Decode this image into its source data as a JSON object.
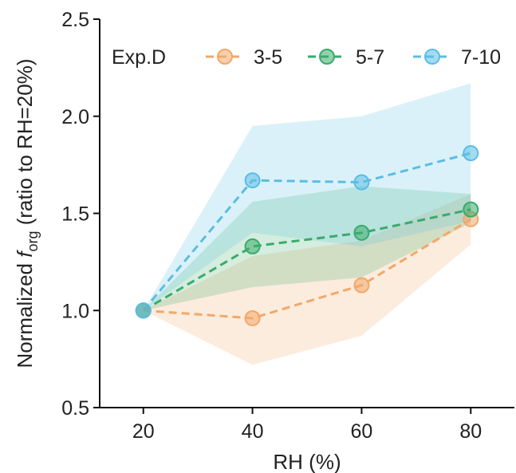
{
  "chart_data": {
    "type": "line",
    "x": [
      20,
      40,
      60,
      80
    ],
    "xlabel": "RH (%)",
    "ylabel_prefix": "Normalized ",
    "ylabel_f": "f",
    "ylabel_sub": "org",
    "ylabel_suffix": " (ratio to RH=20%)",
    "xlim": [
      12,
      88
    ],
    "ylim": [
      0.5,
      2.5
    ],
    "xticks": [
      20,
      40,
      60,
      80
    ],
    "yticks": [
      0.5,
      1.0,
      1.5,
      2.0,
      2.5
    ],
    "ytick_labels": [
      "0.5",
      "1.0",
      "1.5",
      "2.0",
      "2.5"
    ],
    "legend_title": "Exp.D",
    "legend_position": "top",
    "grid": false,
    "series": [
      {
        "name": "3-5",
        "color": "#f2a86a",
        "values": [
          1.0,
          0.96,
          1.13,
          1.47
        ],
        "band_low": [
          1.0,
          0.72,
          0.87,
          1.34
        ],
        "band_high": [
          1.0,
          1.28,
          1.36,
          1.6
        ]
      },
      {
        "name": "5-7",
        "color": "#3aab6b",
        "values": [
          1.0,
          1.33,
          1.4,
          1.52
        ],
        "band_low": [
          1.0,
          1.12,
          1.17,
          1.45
        ],
        "band_high": [
          1.0,
          1.56,
          1.64,
          1.6
        ]
      },
      {
        "name": "7-10",
        "color": "#5bbde4",
        "values": [
          1.0,
          1.67,
          1.66,
          1.81
        ],
        "band_low": [
          1.0,
          1.4,
          1.33,
          1.46
        ],
        "band_high": [
          1.0,
          1.95,
          2.0,
          2.17
        ]
      }
    ]
  }
}
